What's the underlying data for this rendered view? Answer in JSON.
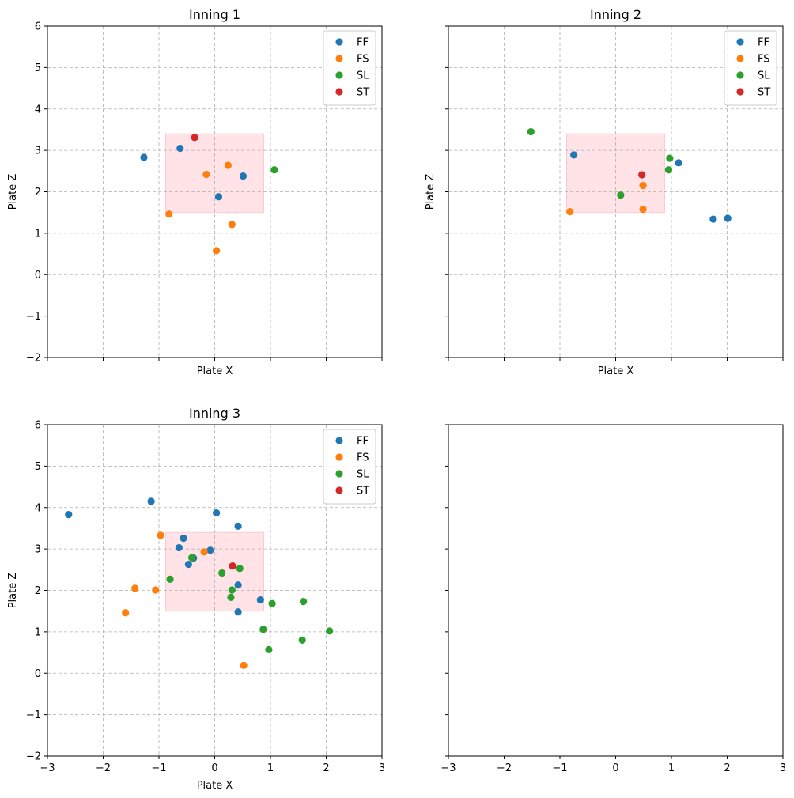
{
  "colors": {
    "FF": "#1f77b4",
    "FS": "#ff7f0e",
    "SL": "#2ca02c",
    "ST": "#d62728",
    "zone": "#ffb0b8",
    "grid": "#b0b0b0"
  },
  "chart_data": [
    {
      "type": "scatter",
      "title": "Inning 1",
      "xlabel": "Plate X",
      "ylabel": "Plate Z",
      "xlim": [
        -3,
        3
      ],
      "ylim": [
        -2,
        6
      ],
      "grid": true,
      "legend": "top-right",
      "strike_zone": {
        "x": [
          -0.88,
          0.88
        ],
        "z": [
          1.5,
          3.4
        ]
      },
      "series": [
        {
          "name": "FF",
          "points": [
            [
              -1.27,
              2.83
            ],
            [
              -0.62,
              3.05
            ],
            [
              0.07,
              1.88
            ],
            [
              0.51,
              2.38
            ]
          ]
        },
        {
          "name": "FS",
          "points": [
            [
              -0.82,
              1.46
            ],
            [
              -0.15,
              2.42
            ],
            [
              0.24,
              2.64
            ],
            [
              0.31,
              1.21
            ],
            [
              0.03,
              0.58
            ]
          ]
        },
        {
          "name": "SL",
          "points": [
            [
              1.07,
              2.53
            ]
          ]
        },
        {
          "name": "ST",
          "points": [
            [
              -0.36,
              3.31
            ]
          ]
        }
      ]
    },
    {
      "type": "scatter",
      "title": "Inning 2",
      "xlabel": "Plate X",
      "ylabel": "Plate Z",
      "xlim": [
        -3,
        3
      ],
      "ylim": [
        -2,
        6
      ],
      "grid": true,
      "legend": "top-right",
      "strike_zone": {
        "x": [
          -0.88,
          0.88
        ],
        "z": [
          1.5,
          3.4
        ]
      },
      "series": [
        {
          "name": "FF",
          "points": [
            [
              -0.75,
              2.89
            ],
            [
              1.13,
              2.7
            ],
            [
              1.75,
              1.34
            ],
            [
              2.01,
              1.36
            ]
          ]
        },
        {
          "name": "FS",
          "points": [
            [
              -0.82,
              1.52
            ],
            [
              0.49,
              2.15
            ],
            [
              0.49,
              1.58
            ]
          ]
        },
        {
          "name": "SL",
          "points": [
            [
              -1.52,
              3.45
            ],
            [
              0.09,
              1.92
            ],
            [
              0.97,
              2.81
            ],
            [
              0.95,
              2.53
            ]
          ]
        },
        {
          "name": "ST",
          "points": [
            [
              0.47,
              2.41
            ]
          ]
        }
      ]
    },
    {
      "type": "scatter",
      "title": "Inning 3",
      "xlabel": "Plate X",
      "ylabel": "Plate Z",
      "xlim": [
        -3,
        3
      ],
      "ylim": [
        -2,
        6
      ],
      "grid": true,
      "legend": "top-right",
      "strike_zone": {
        "x": [
          -0.88,
          0.88
        ],
        "z": [
          1.5,
          3.4
        ]
      },
      "series": [
        {
          "name": "FF",
          "points": [
            [
              -2.62,
              3.83
            ],
            [
              -1.14,
              4.15
            ],
            [
              0.03,
              3.87
            ],
            [
              0.42,
              3.55
            ],
            [
              -0.56,
              3.26
            ],
            [
              -0.64,
              3.03
            ],
            [
              -0.08,
              2.97
            ],
            [
              -0.38,
              2.78
            ],
            [
              -0.47,
              2.63
            ],
            [
              0.42,
              2.13
            ],
            [
              0.82,
              1.77
            ],
            [
              0.42,
              1.48
            ]
          ]
        },
        {
          "name": "FS",
          "points": [
            [
              -0.97,
              3.33
            ],
            [
              -0.19,
              2.93
            ],
            [
              -1.43,
              2.05
            ],
            [
              -1.06,
              2.01
            ],
            [
              -1.6,
              1.46
            ],
            [
              0.52,
              0.19
            ]
          ]
        },
        {
          "name": "SL",
          "points": [
            [
              -0.41,
              2.79
            ],
            [
              0.45,
              2.53
            ],
            [
              0.13,
              2.42
            ],
            [
              -0.8,
              2.27
            ],
            [
              0.31,
              2.01
            ],
            [
              0.29,
              1.83
            ],
            [
              1.03,
              1.68
            ],
            [
              1.59,
              1.73
            ],
            [
              0.87,
              1.06
            ],
            [
              2.06,
              1.02
            ],
            [
              0.97,
              0.57
            ],
            [
              1.57,
              0.8
            ]
          ]
        },
        {
          "name": "ST",
          "points": [
            [
              0.32,
              2.59
            ]
          ]
        }
      ]
    },
    {
      "type": "scatter",
      "title": "",
      "xlabel": "",
      "ylabel": "",
      "xlim": [
        -3,
        3
      ],
      "ylim": [
        -2,
        6
      ],
      "grid": false,
      "legend": "none",
      "series": []
    }
  ]
}
